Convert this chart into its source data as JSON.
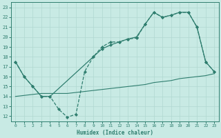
{
  "xlabel": "Humidex (Indice chaleur)",
  "background_color": "#c8eae4",
  "line_color": "#2e7d6e",
  "grid_color": "#b0d8d0",
  "xlim": [
    -0.5,
    23.5
  ],
  "ylim": [
    11.5,
    23.5
  ],
  "xticks": [
    0,
    1,
    2,
    3,
    4,
    5,
    6,
    7,
    8,
    9,
    10,
    11,
    12,
    13,
    14,
    15,
    16,
    17,
    18,
    19,
    20,
    21,
    22,
    23
  ],
  "yticks": [
    12,
    13,
    14,
    15,
    16,
    17,
    18,
    19,
    20,
    21,
    22,
    23
  ],
  "line1_x": [
    0,
    1,
    2,
    3,
    4,
    5,
    6,
    7,
    8,
    9,
    10,
    11,
    12,
    13,
    14,
    15,
    16,
    17,
    18,
    19,
    20,
    21,
    22,
    23
  ],
  "line1_y": [
    17.5,
    16.0,
    15.0,
    14.0,
    14.0,
    12.7,
    11.9,
    12.2,
    16.5,
    18.0,
    19.0,
    19.5,
    19.5,
    19.8,
    19.9,
    21.3,
    22.5,
    22.0,
    22.2,
    22.5,
    22.5,
    21.0,
    17.5,
    16.5
  ],
  "line2_x": [
    0,
    1,
    2,
    3,
    4,
    9,
    10,
    11,
    12,
    13,
    14,
    15,
    16,
    17,
    18,
    19,
    20,
    21,
    22,
    23
  ],
  "line2_y": [
    17.5,
    16.0,
    15.0,
    14.0,
    14.0,
    18.0,
    18.8,
    19.2,
    19.5,
    19.8,
    20.0,
    21.3,
    22.5,
    22.0,
    22.2,
    22.5,
    22.5,
    21.0,
    17.5,
    16.5
  ],
  "line3_x": [
    0,
    1,
    2,
    3,
    4,
    5,
    6,
    7,
    8,
    9,
    10,
    11,
    12,
    13,
    14,
    15,
    16,
    17,
    18,
    19,
    20,
    21,
    22,
    23
  ],
  "line3_y": [
    14.0,
    14.1,
    14.2,
    14.3,
    14.3,
    14.3,
    14.3,
    14.4,
    14.5,
    14.6,
    14.7,
    14.8,
    14.9,
    15.0,
    15.1,
    15.2,
    15.4,
    15.5,
    15.6,
    15.8,
    15.9,
    16.0,
    16.1,
    16.3
  ]
}
